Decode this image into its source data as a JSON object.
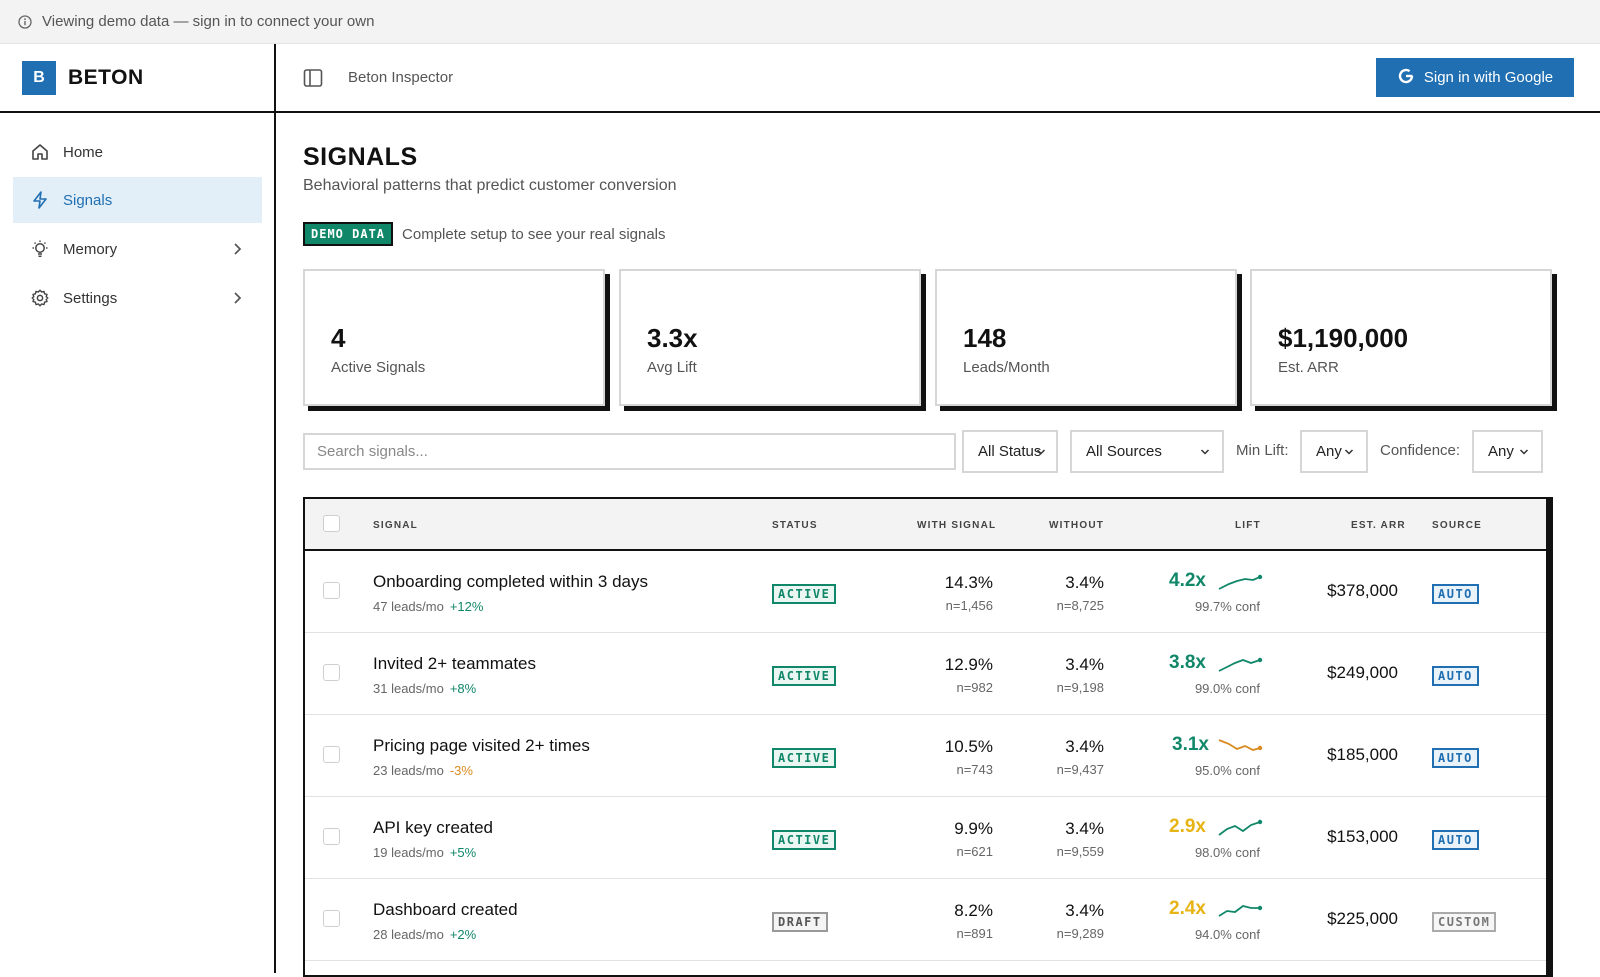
{
  "banner": {
    "text": "Viewing demo data — sign in to connect your own",
    "icon": "info-icon"
  },
  "brand": {
    "logo_letter": "B",
    "name": "BETON"
  },
  "topbar": {
    "breadcrumb": "Beton Inspector",
    "signin_label": "Sign in with Google",
    "accent": "#1f6fb2"
  },
  "sidebar": {
    "items": [
      {
        "label": "Home",
        "icon": "home-icon",
        "active": false,
        "has_chevron": false
      },
      {
        "label": "Signals",
        "icon": "lightning-icon",
        "active": true,
        "has_chevron": false
      },
      {
        "label": "Memory",
        "icon": "lightbulb-icon",
        "active": false,
        "has_chevron": true
      },
      {
        "label": "Settings",
        "icon": "gear-icon",
        "active": false,
        "has_chevron": true
      }
    ]
  },
  "page": {
    "title": "SIGNALS",
    "subtitle": "Behavioral patterns that predict customer conversion",
    "demo_badge": "DEMO DATA",
    "demo_note": "Complete setup to see your real signals"
  },
  "stats": [
    {
      "value": "4",
      "label": "Active Signals"
    },
    {
      "value": "3.3x",
      "label": "Avg Lift"
    },
    {
      "value": "148",
      "label": "Leads/Month"
    },
    {
      "value": "$1,190,000",
      "label": "Est. ARR"
    }
  ],
  "filters": {
    "search_placeholder": "Search signals...",
    "status": "All Status",
    "sources": "All Sources",
    "min_lift_label": "Min Lift:",
    "min_lift": "Any",
    "confidence_label": "Confidence:",
    "confidence": "Any"
  },
  "table": {
    "headers": {
      "signal": "SIGNAL",
      "status": "STATUS",
      "with_signal": "WITH SIGNAL",
      "without": "WITHOUT",
      "lift": "LIFT",
      "est_arr": "EST. ARR",
      "source": "SOURCE"
    },
    "rows": [
      {
        "name": "Onboarding completed within 3 days",
        "leads": "47 leads/mo",
        "delta": "+12%",
        "delta_color": "#11876a",
        "status": "ACTIVE",
        "with_pct": "14.3%",
        "with_n": "n=1,456",
        "without_pct": "3.4%",
        "without_n": "n=8,725",
        "lift": "4.2x",
        "lift_color": "#11876a",
        "trend": "up",
        "conf": "99.7% conf",
        "arr": "$378,000",
        "source": "AUTO"
      },
      {
        "name": "Invited 2+ teammates",
        "leads": "31 leads/mo",
        "delta": "+8%",
        "delta_color": "#11876a",
        "status": "ACTIVE",
        "with_pct": "12.9%",
        "with_n": "n=982",
        "without_pct": "3.4%",
        "without_n": "n=9,198",
        "lift": "3.8x",
        "lift_color": "#11876a",
        "trend": "up",
        "conf": "99.0% conf",
        "arr": "$249,000",
        "source": "AUTO"
      },
      {
        "name": "Pricing page visited 2+ times",
        "leads": "23 leads/mo",
        "delta": "-3%",
        "delta_color": "#d98a1f",
        "status": "ACTIVE",
        "with_pct": "10.5%",
        "with_n": "n=743",
        "without_pct": "3.4%",
        "without_n": "n=9,437",
        "lift": "3.1x",
        "lift_color": "#11876a",
        "trend": "down",
        "conf": "95.0% conf",
        "arr": "$185,000",
        "source": "AUTO"
      },
      {
        "name": "API key created",
        "leads": "19 leads/mo",
        "delta": "+5%",
        "delta_color": "#11876a",
        "status": "ACTIVE",
        "with_pct": "9.9%",
        "with_n": "n=621",
        "without_pct": "3.4%",
        "without_n": "n=9,559",
        "lift": "2.9x",
        "lift_color": "#e7b416",
        "trend": "up",
        "conf": "98.0% conf",
        "arr": "$153,000",
        "source": "AUTO"
      },
      {
        "name": "Dashboard created",
        "leads": "28 leads/mo",
        "delta": "+2%",
        "delta_color": "#11876a",
        "status": "DRAFT",
        "with_pct": "8.2%",
        "with_n": "n=891",
        "without_pct": "3.4%",
        "without_n": "n=9,289",
        "lift": "2.4x",
        "lift_color": "#e7b416",
        "trend": "up",
        "conf": "94.0% conf",
        "arr": "$225,000",
        "source": "CUSTOM"
      }
    ]
  }
}
